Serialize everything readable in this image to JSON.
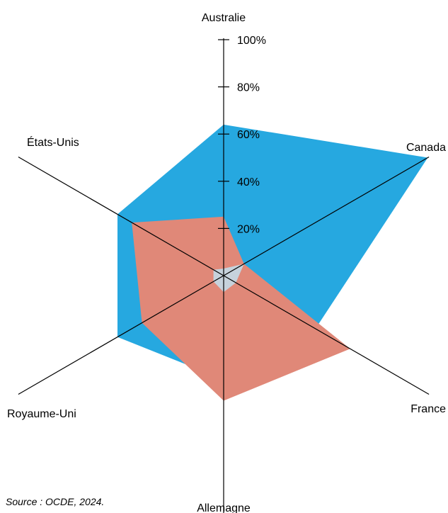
{
  "chart_data": {
    "type": "radar",
    "axes": [
      "Australie",
      "Canada",
      "France",
      "Allemagne",
      "Royaume-Uni",
      "États-Unis"
    ],
    "tick_labels": [
      "20%",
      "40%",
      "60%",
      "80%",
      "100%"
    ],
    "tick_values": [
      20,
      40,
      60,
      80,
      100
    ],
    "range": [
      0,
      100
    ],
    "series": [
      {
        "color": "#26a8e0",
        "values": [
          64,
          100,
          45,
          44,
          52,
          52
        ]
      },
      {
        "color": "#e08878",
        "values": [
          25,
          10,
          62,
          53,
          40,
          45
        ]
      },
      {
        "color": "#c6d2dc",
        "values": [
          3,
          10,
          6,
          7,
          5,
          5
        ]
      }
    ]
  },
  "source": "Source : OCDE, 2024."
}
